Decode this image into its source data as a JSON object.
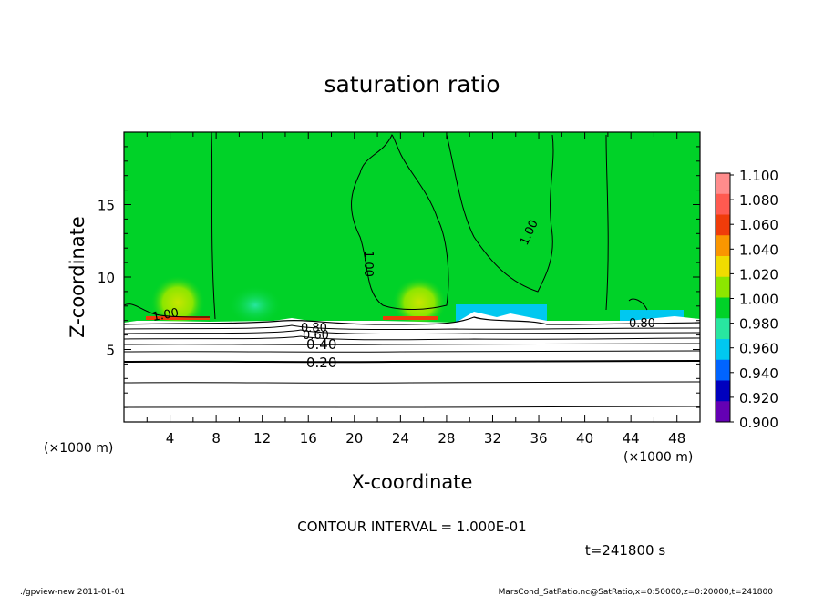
{
  "chart_data": {
    "type": "heatmap",
    "title": "saturation ratio",
    "xlabel": "X-coordinate",
    "ylabel": "Z-coordinate",
    "x_unit_label": "(×1000 m)",
    "y_unit_label": "(×1000 m)",
    "xlim": [
      0,
      50
    ],
    "ylim": [
      0,
      20
    ],
    "x_ticks": [
      "4",
      "8",
      "12",
      "16",
      "20",
      "24",
      "28",
      "32",
      "36",
      "40",
      "44",
      "48"
    ],
    "y_ticks": [
      "5",
      "10",
      "15"
    ],
    "contour_labels": [
      "1.00",
      "1.00",
      "1.00",
      "0.80",
      "0.60",
      "0.40",
      "0.20",
      "0.80"
    ],
    "contour_interval": "CONTOUR INTERVAL = 1.000E-01",
    "time_label": "t=241800 s",
    "colorbar": {
      "levels": [
        "1.100",
        "1.080",
        "1.060",
        "1.040",
        "1.020",
        "1.000",
        "0.980",
        "0.960",
        "0.940",
        "0.920",
        "0.900"
      ],
      "colors": [
        "#ff8c8c",
        "#ff5a50",
        "#f03c0a",
        "#fa9600",
        "#f0dc00",
        "#8ce600",
        "#00d228",
        "#28e6a0",
        "#00c8f0",
        "#0064ff",
        "#0000be",
        "#6400b4"
      ]
    },
    "grid": false,
    "legend": "right colorbar"
  },
  "footer": {
    "left": "./gpview-new   2011-01-01",
    "right": "MarsCond_SatRatio.nc@SatRatio,x=0:50000,z=0:20000,t=241800"
  }
}
